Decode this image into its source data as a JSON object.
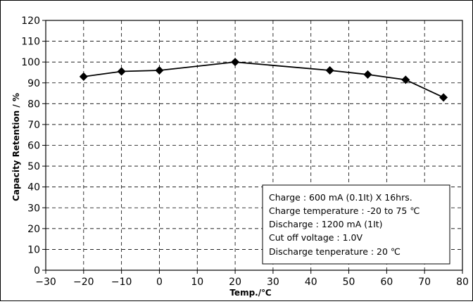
{
  "chart_data": {
    "type": "line",
    "title": "",
    "xlabel": "Temp./℃",
    "ylabel": "Capacity Retention / %",
    "xlim": [
      -30,
      80
    ],
    "ylim": [
      0,
      120
    ],
    "xticks": [
      -30,
      -20,
      -10,
      0,
      10,
      20,
      30,
      40,
      50,
      60,
      70,
      80
    ],
    "yticks": [
      0,
      10,
      20,
      30,
      40,
      50,
      60,
      70,
      80,
      90,
      100,
      110,
      120
    ],
    "xtick_labels": [
      "−30",
      "−20",
      "−10",
      "0",
      "10",
      "20",
      "30",
      "40",
      "50",
      "60",
      "70",
      "80"
    ],
    "ytick_labels": [
      "0",
      "10",
      "20",
      "30",
      "40",
      "50",
      "60",
      "70",
      "80",
      "90",
      "100",
      "110",
      "120"
    ],
    "grid": true,
    "legend": "none",
    "series": [
      {
        "marker": "diamond",
        "color": "#000000",
        "x": [
          -20,
          -10,
          0,
          20,
          45,
          55,
          65,
          75
        ],
        "y": [
          93,
          95.5,
          96,
          100,
          96,
          94,
          91.5,
          83
        ]
      }
    ],
    "annotations": [
      "Charge : 600 mA (0.1It) X 16hrs.",
      "Charge temperature : -20 to 75 ℃",
      "Discharge : 1200 mA (1It)",
      "Cut off voltage : 1.0V",
      "Discharge tenperature : 20 ℃"
    ]
  }
}
